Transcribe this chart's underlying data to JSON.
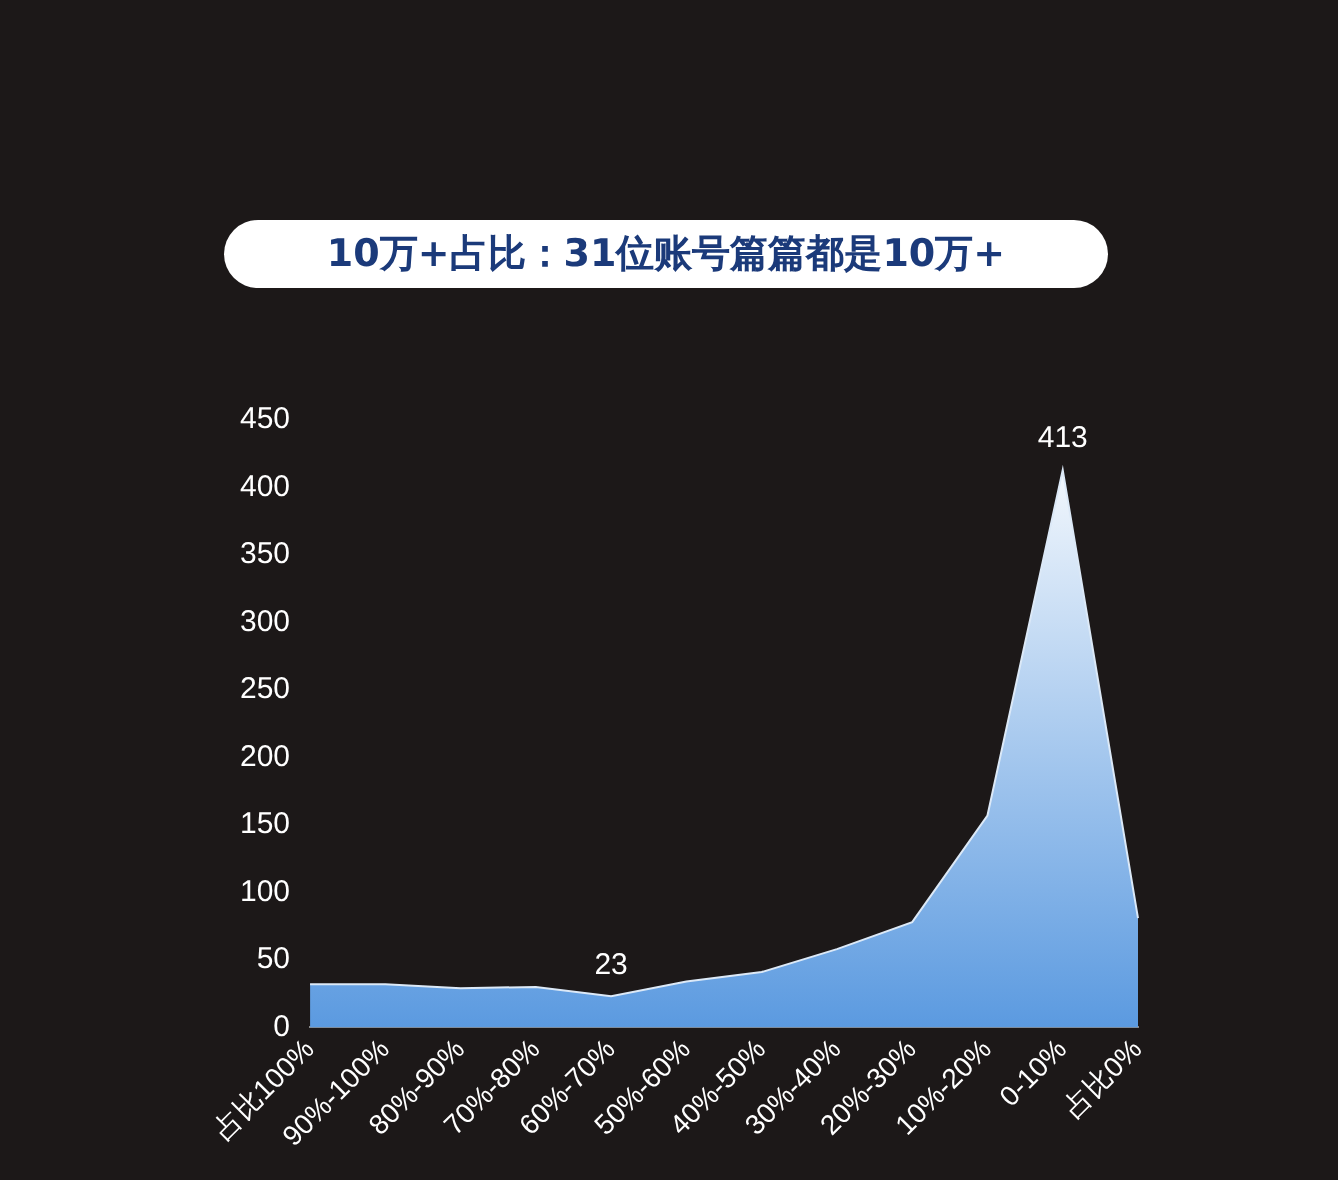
{
  "chart_data": {
    "type": "area",
    "title": "10万+占比：31位账号篇篇都是10万+",
    "categories": [
      "占比100%",
      "90%-100%",
      "80%-90%",
      "70%-80%",
      "60%-70%",
      "50%-60%",
      "40%-50%",
      "30%-40%",
      "20%-30%",
      "10%-20%",
      "0-10%",
      "占比0%"
    ],
    "values": [
      32,
      32,
      29,
      30,
      23,
      34,
      41,
      58,
      78,
      157,
      413,
      81
    ],
    "value_labels": [
      null,
      null,
      null,
      null,
      "23",
      null,
      null,
      null,
      null,
      null,
      "413",
      null
    ],
    "color": "#5b9ae0",
    "ylim": [
      0,
      450
    ],
    "yticks": [
      0,
      50,
      100,
      150,
      200,
      250,
      300,
      350,
      400,
      450
    ],
    "grid": false,
    "legend": false
  }
}
